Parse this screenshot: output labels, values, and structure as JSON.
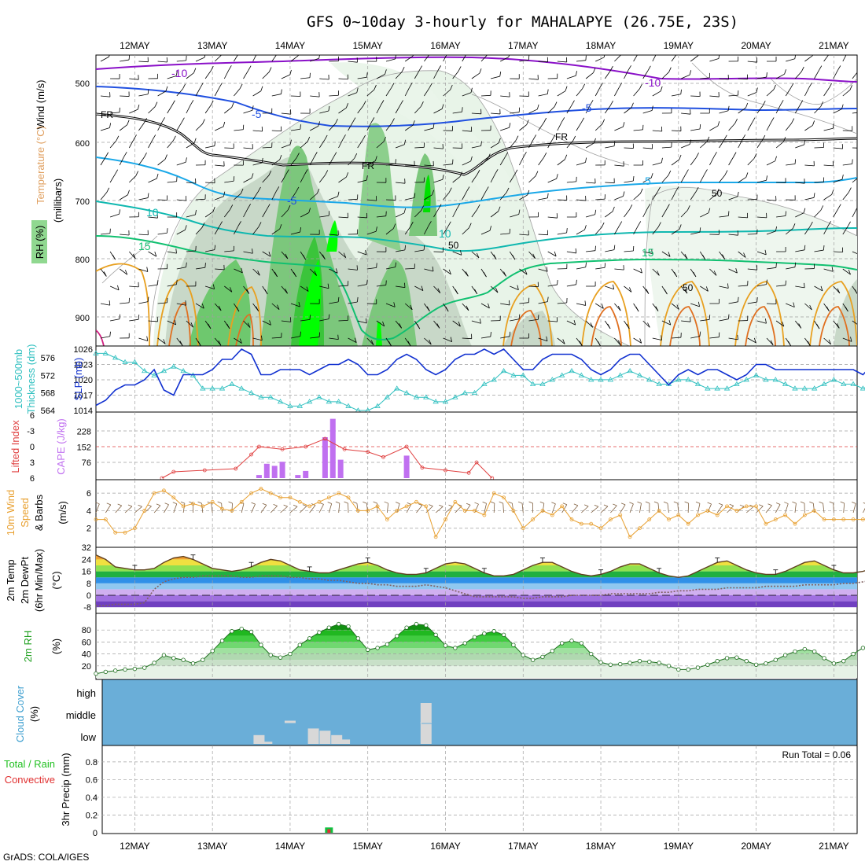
{
  "title": "GFS 0~10day 3-hourly for MAHALAPYE (26.75E, 23S)",
  "credit": "GrADS: COLA/IGES",
  "run_total_text": "Run Total = 0.06",
  "dates": [
    "12MAY",
    "13MAY",
    "14MAY",
    "15MAY",
    "16MAY",
    "17MAY",
    "18MAY",
    "19MAY",
    "20MAY",
    "21MAY"
  ],
  "panel_labels": {
    "upper": {
      "wind": "Wind (m/s)",
      "temp": "Temperature (°C)",
      "mb": "(millibars)",
      "rh": "RH (%)"
    },
    "thick": {
      "a": "1000~500mb",
      "b": "Thickness (dm)",
      "slp": "SLP (mb)"
    },
    "li": {
      "li": "Lifted Index",
      "cape": "CAPE (J/kg)"
    },
    "wind10": {
      "a": "10m Wind",
      "b": "Speed",
      "c": "& Barbs",
      "u": "(m/s)"
    },
    "temp2m": {
      "a": "2m Temp",
      "b": "2m DewPt",
      "c": "(6hr Min/Max)",
      "u": "(°C)"
    },
    "rh2m": {
      "a": "2m RH",
      "u": "(%)"
    },
    "cloud": {
      "a": "Cloud Cover",
      "u": "(%)",
      "high": "high",
      "middle": "middle",
      "low": "low"
    },
    "precip": {
      "a": "Total / Rain",
      "b": "Convective",
      "c": "3hr Precip (mm)"
    }
  },
  "contour_labels": {
    "m10a": "-10",
    "m10b": "-10",
    "m5a": "-5",
    "m5b": "-5",
    "m5c": "-5",
    "fr1": "FR",
    "fr2": "FR",
    "fr3": "FR",
    "p5": "5",
    "p10a": "10",
    "p10b": "10",
    "p15a": "15",
    "p15b": "15",
    "rh50a": "50",
    "rh50b": "50",
    "rh50c": "50",
    "c900": "900",
    "c800": "800",
    "c700": "700",
    "c600": "600",
    "c500": "500"
  },
  "colors": {
    "temp_purple": "#8a10c8",
    "temp_blue": "#2050e0",
    "temp_cyan": "#1aa8e8",
    "temp_teal": "#10b8b0",
    "temp_green": "#10c070",
    "temp_orange": "#e8a020",
    "slp": "#1030d0",
    "thickness": "#30c0c0",
    "lifted": "#e04040",
    "cape": "#c070f0",
    "wind10": "#e8a030",
    "cloud_bg": "#6aaed8",
    "precip_total": "#10c040",
    "precip_conv": "#e03030"
  },
  "chart_data": [
    {
      "type": "heatmap",
      "panel": "upper-air",
      "ylabel": "(millibars)",
      "y_ticks": [
        500,
        600,
        700,
        800,
        900
      ],
      "ylim": [
        450,
        950
      ],
      "series": [
        {
          "name": "-10",
          "values": [
            -10
          ]
        },
        {
          "name": "-5",
          "values": [
            -5
          ]
        },
        {
          "name": "FR",
          "values": [
            0
          ]
        },
        {
          "name": "5",
          "values": [
            5
          ]
        },
        {
          "name": "10",
          "values": [
            10
          ]
        },
        {
          "name": "15",
          "values": [
            15
          ]
        }
      ]
    },
    {
      "type": "line",
      "panel": "thickness-slp",
      "left_ticks": [
        564,
        568,
        572,
        576
      ],
      "right_ticks": [
        1014,
        1017,
        1020,
        1023,
        1026
      ],
      "slp": [
        1015,
        1016,
        1018,
        1019,
        1019,
        1020,
        1022,
        1018,
        1017,
        1021,
        1021,
        1021,
        1022,
        1024,
        1024,
        1026,
        1025,
        1021,
        1021,
        1022,
        1022,
        1022,
        1021,
        1022,
        1023,
        1023,
        1024,
        1023,
        1021,
        1021,
        1022,
        1024,
        1025,
        1024,
        1022,
        1021,
        1022,
        1024,
        1025,
        1025,
        1026,
        1025,
        1026,
        1024,
        1022,
        1022,
        1024,
        1025,
        1025,
        1025,
        1024,
        1022,
        1021,
        1022,
        1024,
        1025,
        1025,
        1023,
        1021,
        1019,
        1021,
        1022,
        1021,
        1022,
        1022,
        1021,
        1020,
        1021,
        1023,
        1023,
        1022,
        1022,
        1022,
        1022,
        1022,
        1022,
        1022,
        1022,
        1022,
        1021,
        1023
      ],
      "thickness": [
        577,
        577,
        576,
        575,
        575,
        573,
        572,
        573,
        574,
        573,
        572,
        569,
        569,
        569,
        570,
        569,
        568,
        567,
        567,
        566,
        565,
        565,
        566,
        567,
        566,
        566,
        565,
        564,
        564,
        565,
        567,
        569,
        568,
        567,
        567,
        566,
        566,
        567,
        568,
        568,
        570,
        571,
        573,
        572,
        572,
        570,
        570,
        571,
        572,
        573,
        572,
        571,
        571,
        571,
        572,
        573,
        572,
        571,
        570,
        570,
        571,
        571,
        570,
        569,
        569,
        569,
        570,
        571,
        572,
        571,
        571,
        570,
        569,
        569,
        569,
        570,
        571,
        570,
        570,
        569,
        570
      ]
    },
    {
      "type": "bar",
      "panel": "lifted-index-cape",
      "left_ticks": [
        -6,
        -3,
        0,
        3,
        6
      ],
      "right_ticks": [
        76,
        152,
        228
      ],
      "cape_bars": [
        {
          "day": 13.6,
          "v": 15
        },
        {
          "day": 13.7,
          "v": 70
        },
        {
          "day": 13.8,
          "v": 60
        },
        {
          "day": 13.9,
          "v": 80
        },
        {
          "day": 14.1,
          "v": 15
        },
        {
          "day": 14.2,
          "v": 35
        },
        {
          "day": 14.45,
          "v": 200
        },
        {
          "day": 14.55,
          "v": 290
        },
        {
          "day": 14.65,
          "v": 90
        },
        {
          "day": 15.5,
          "v": 110
        }
      ],
      "lifted_index": [
        {
          "day": 12.35,
          "v": 6
        },
        {
          "day": 12.5,
          "v": 4.8
        },
        {
          "day": 12.9,
          "v": 4.5
        },
        {
          "day": 13.3,
          "v": 4.2
        },
        {
          "day": 13.5,
          "v": 1.5
        },
        {
          "day": 13.6,
          "v": 0
        },
        {
          "day": 13.9,
          "v": 0.5
        },
        {
          "day": 14.2,
          "v": 0
        },
        {
          "day": 14.45,
          "v": -1.5
        },
        {
          "day": 14.7,
          "v": 0.5
        },
        {
          "day": 15.0,
          "v": 1
        },
        {
          "day": 15.2,
          "v": 2
        },
        {
          "day": 15.5,
          "v": 0
        },
        {
          "day": 15.7,
          "v": 4
        },
        {
          "day": 16.0,
          "v": 4.5
        },
        {
          "day": 16.3,
          "v": 5
        },
        {
          "day": 16.4,
          "v": 3
        },
        {
          "day": 16.6,
          "v": 6
        }
      ]
    },
    {
      "type": "line",
      "panel": "10m-wind",
      "ylabel": "(m/s)",
      "y_ticks": [
        2,
        4,
        6
      ],
      "values": [
        3,
        3,
        1.5,
        1.5,
        2,
        4,
        6,
        6.3,
        5.5,
        4.5,
        4.8,
        4.5,
        5,
        4.2,
        4,
        5,
        6,
        6.5,
        6,
        5.5,
        5.5,
        5,
        4.5,
        5,
        5.5,
        6,
        5.5,
        4,
        4,
        4.5,
        3,
        4,
        4.5,
        5,
        4.5,
        1,
        3,
        5,
        4,
        4,
        3.5,
        6,
        5.5,
        4,
        2,
        3,
        4,
        3.5,
        4.5,
        3,
        2.5,
        2.5,
        2,
        3,
        3.5,
        1,
        2,
        3,
        4,
        3,
        3.5,
        2.5,
        3.5,
        4,
        3.5,
        4.5,
        4,
        4.5,
        4.5,
        2.5,
        3,
        3.5,
        2.5,
        3.5,
        4,
        3,
        3,
        3,
        3,
        3,
        3.2
      ]
    },
    {
      "type": "area",
      "panel": "2m-temp",
      "ylabel": "(°C)",
      "y_ticks": [
        -8,
        0,
        8,
        16,
        24,
        32
      ],
      "temp": [
        27,
        24,
        19,
        18,
        17,
        17,
        18,
        22,
        25,
        26,
        24,
        21,
        18,
        17,
        16,
        17,
        19,
        22,
        24,
        23,
        20,
        17,
        16,
        15,
        15,
        17,
        19,
        21,
        22,
        20,
        17,
        15,
        14,
        14,
        15,
        18,
        21,
        22,
        21,
        18,
        15,
        13,
        13,
        14,
        17,
        20,
        22,
        22,
        19,
        16,
        14,
        13,
        14,
        16,
        19,
        21,
        21,
        18,
        15,
        13,
        12,
        13,
        16,
        19,
        22,
        23,
        20,
        17,
        15,
        14,
        14,
        16,
        19,
        22,
        23,
        20,
        17,
        15,
        15,
        16,
        18
      ],
      "dewpoint": [
        -7,
        -7,
        -6,
        -6,
        -6,
        -5,
        4,
        9,
        11,
        12,
        12,
        13,
        13,
        13,
        13,
        12,
        12,
        13,
        13,
        13,
        12,
        12,
        11,
        11,
        10,
        10,
        9,
        8,
        8,
        7,
        7,
        6,
        6,
        6,
        7,
        6,
        5,
        3,
        1,
        -1,
        -1,
        -1,
        -1,
        -1,
        -2,
        -2,
        -1,
        -1,
        -1,
        0,
        0,
        0,
        0,
        1,
        1,
        1,
        1,
        1,
        2,
        2,
        3,
        3,
        4,
        4,
        4,
        5,
        5,
        5,
        5,
        6,
        6,
        6,
        6,
        7,
        7,
        7,
        7,
        8,
        8,
        9,
        10
      ]
    },
    {
      "type": "area",
      "panel": "2m-rh",
      "ylabel": "(%)",
      "y_ticks": [
        20,
        40,
        60,
        80
      ],
      "values": [
        7,
        10,
        12,
        14,
        15,
        17,
        25,
        38,
        33,
        30,
        24,
        30,
        45,
        62,
        78,
        82,
        77,
        55,
        38,
        34,
        40,
        55,
        66,
        76,
        84,
        90,
        86,
        66,
        47,
        50,
        56,
        70,
        84,
        90,
        88,
        72,
        54,
        50,
        58,
        68,
        74,
        78,
        72,
        55,
        38,
        30,
        35,
        45,
        58,
        62,
        58,
        40,
        26,
        22,
        23,
        25,
        28,
        27,
        25,
        20,
        14,
        14,
        17,
        22,
        28,
        33,
        34,
        28,
        22,
        24,
        30,
        38,
        44,
        48,
        44,
        33,
        24,
        28,
        40,
        50,
        55
      ]
    },
    {
      "type": "bar",
      "panel": "cloud-cover",
      "levels": [
        "low",
        "middle",
        "high"
      ],
      "bars": [
        {
          "day": 13.6,
          "level": "low",
          "v": 0.4
        },
        {
          "day": 13.7,
          "level": "low",
          "v": 0.1
        },
        {
          "day": 14.0,
          "level": "middle",
          "v": 0.1
        },
        {
          "day": 14.3,
          "level": "low",
          "v": 0.7
        },
        {
          "day": 14.45,
          "level": "low",
          "v": 0.6
        },
        {
          "day": 14.6,
          "level": "low",
          "v": 0.4
        },
        {
          "day": 14.7,
          "level": "low",
          "v": 0.2
        },
        {
          "day": 15.75,
          "level": "low",
          "v": 1
        },
        {
          "day": 15.75,
          "level": "middle",
          "v": 1
        }
      ]
    },
    {
      "type": "bar",
      "panel": "3hr-precip",
      "ylabel": "3hr Precip (mm)",
      "y_ticks": [
        0,
        0.2,
        0.4,
        0.6,
        0.8
      ],
      "ylim": [
        0,
        0.95
      ],
      "total": [
        {
          "day": 14.5,
          "v": 0.06
        }
      ],
      "convective": [
        {
          "day": 14.5,
          "v": 0.04
        }
      ]
    }
  ]
}
